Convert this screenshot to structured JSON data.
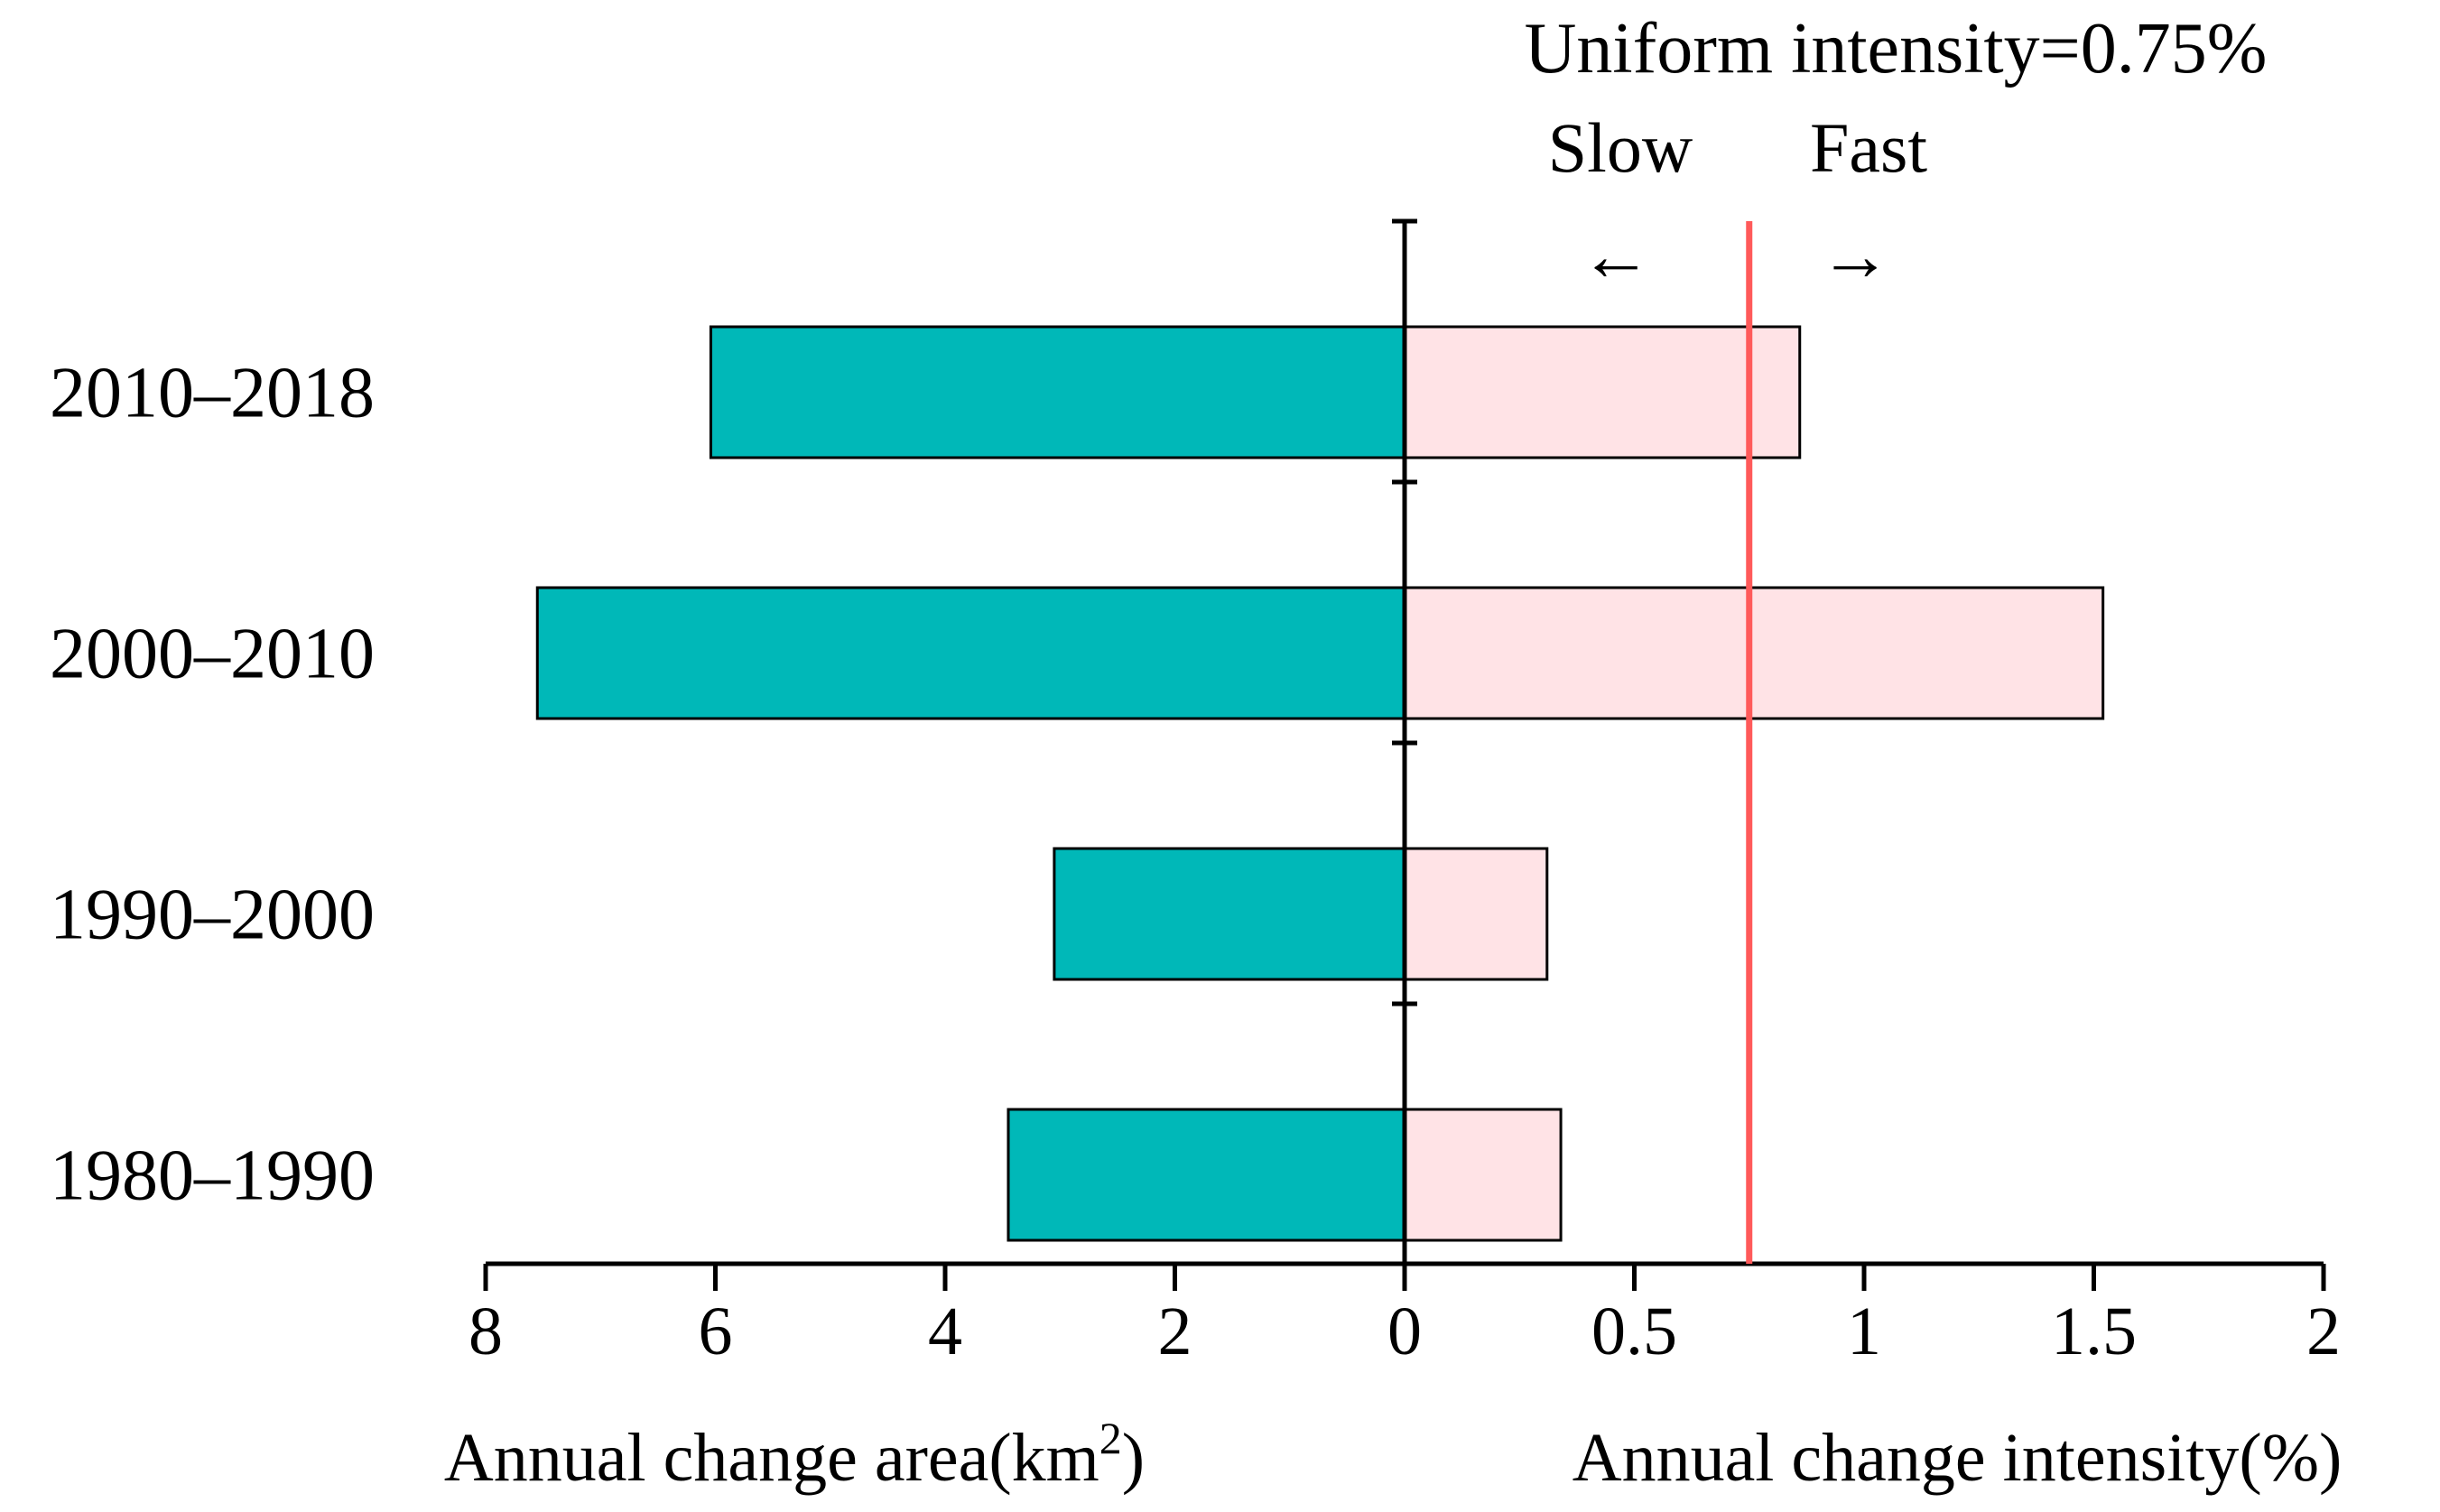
{
  "chart_data": {
    "type": "bar",
    "orientation": "horizontal-butterfly",
    "categories": [
      "2010–2018",
      "2000–2010",
      "1990–2000",
      "1980–1990"
    ],
    "series": [
      {
        "name": "Annual change area",
        "unit": "km²",
        "side": "left",
        "values": [
          6.04,
          7.55,
          3.05,
          3.45
        ],
        "color": "#00b8b8"
      },
      {
        "name": "Annual change intensity",
        "unit": "%",
        "side": "right",
        "values": [
          0.86,
          1.52,
          0.31,
          0.34
        ],
        "color": "#ffe3e6"
      }
    ],
    "left_axis": {
      "label_main": "Annual change area(km",
      "label_sup": "2",
      "label_close": ")",
      "range": [
        0,
        8
      ],
      "ticks": [
        "8",
        "6",
        "4",
        "2",
        "0"
      ],
      "tick_values": [
        8,
        6,
        4,
        2,
        0
      ]
    },
    "right_axis": {
      "label": "Annual change intensity(%)",
      "range": [
        0,
        2
      ],
      "ticks": [
        "0.5",
        "1",
        "1.5",
        "2"
      ],
      "tick_values": [
        0.5,
        1,
        1.5,
        2
      ]
    },
    "reference_line": {
      "value": 0.75,
      "color": "#ff5a5a",
      "label": "Uniform intensity=0.75%"
    },
    "annotations": {
      "slow": "Slow",
      "fast": "Fast",
      "arrow_left": "←",
      "arrow_right": "→"
    }
  }
}
